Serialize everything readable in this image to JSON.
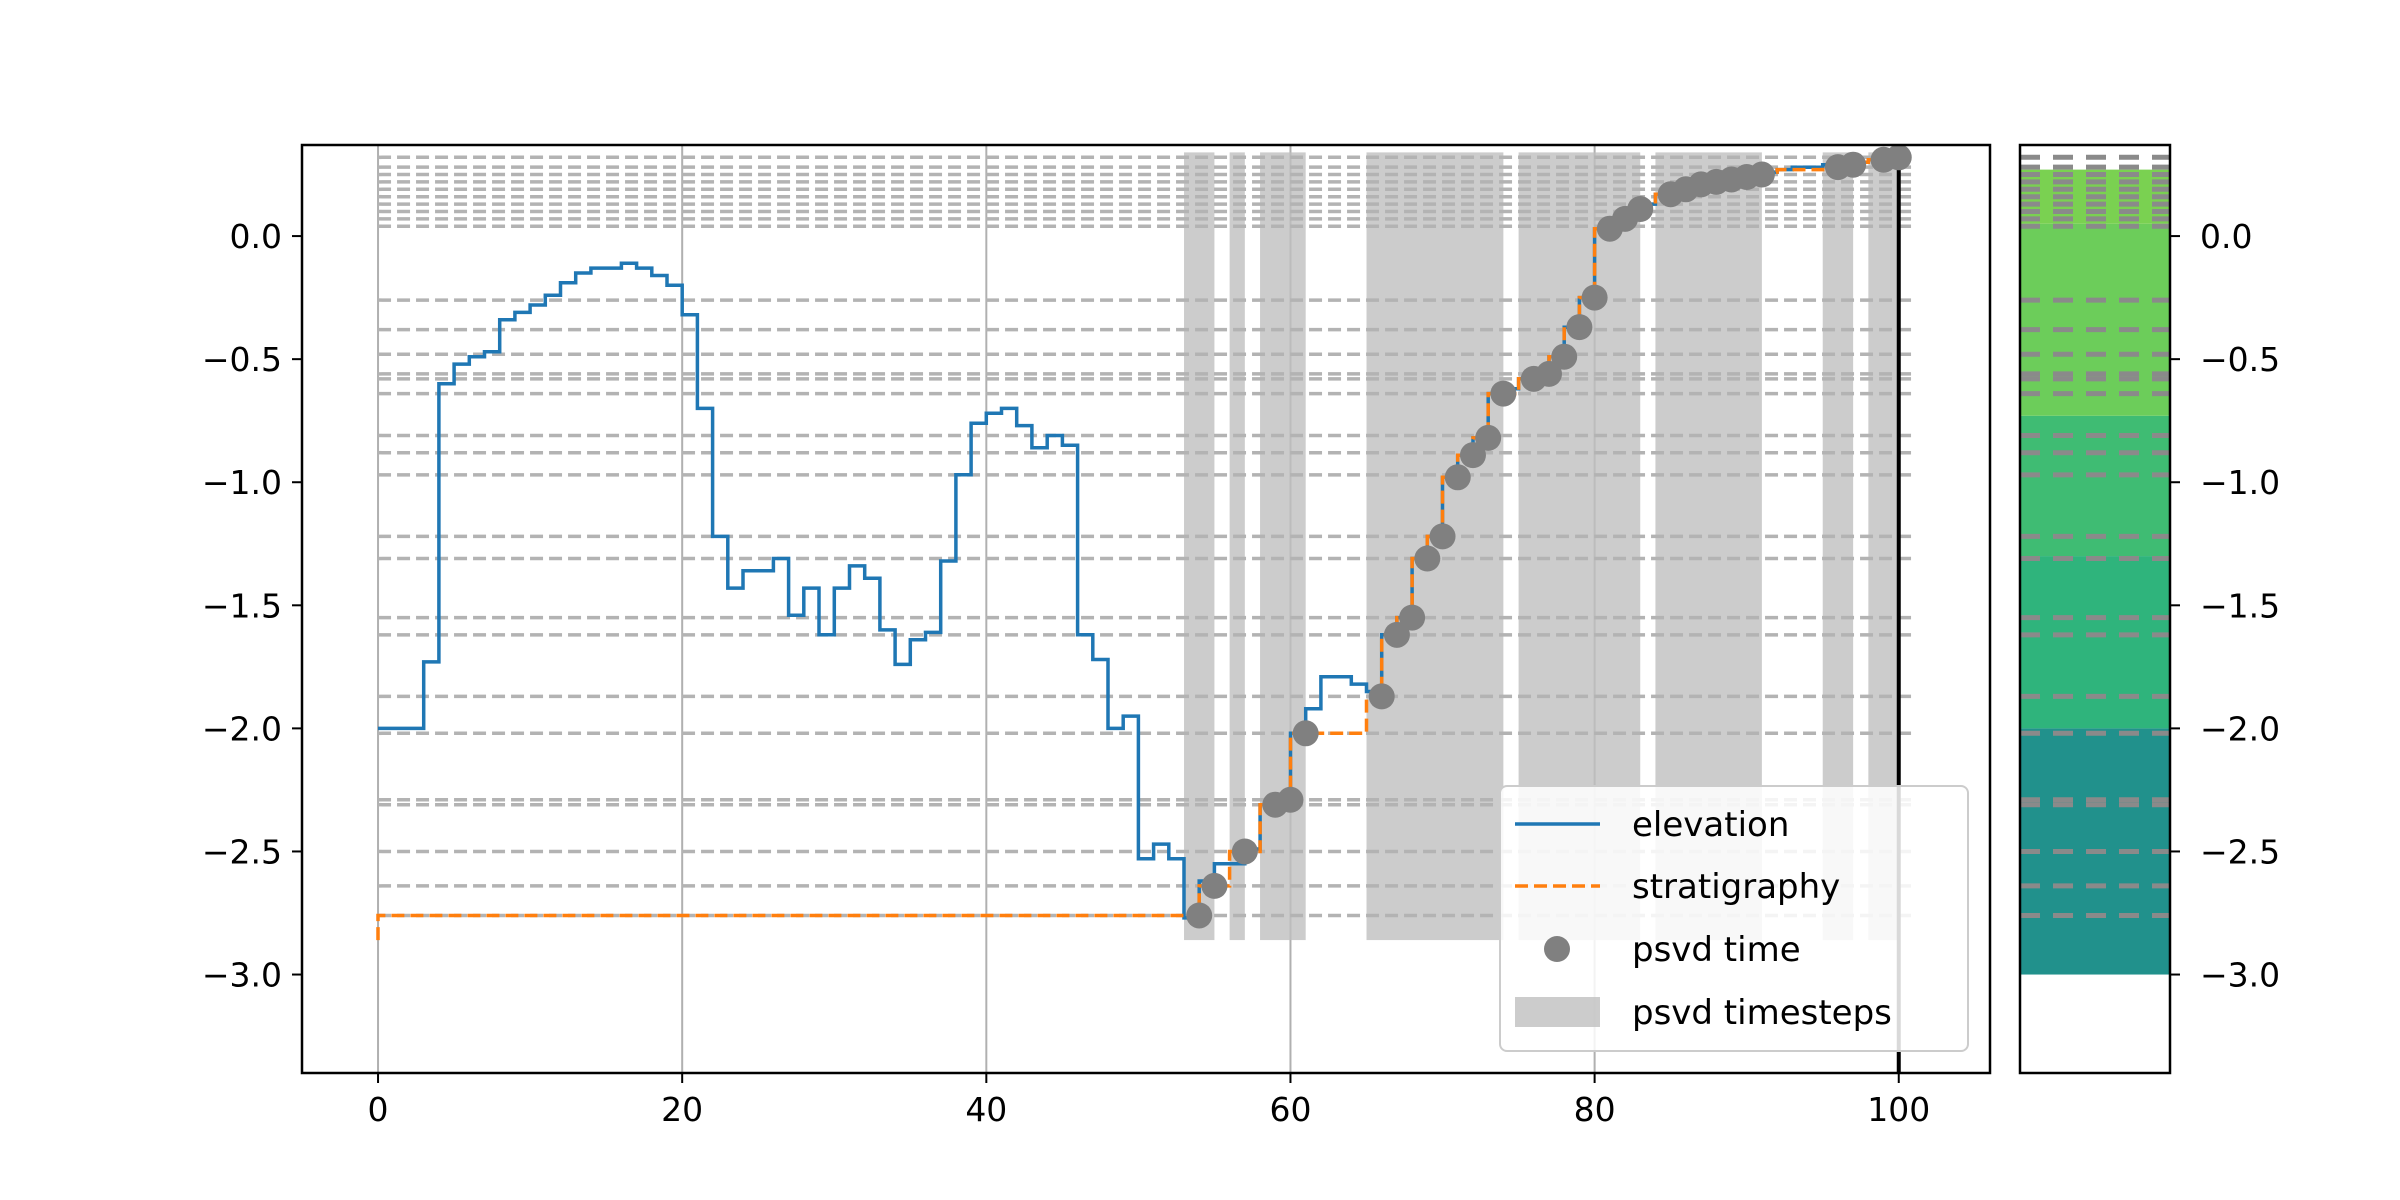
{
  "chart_data": {
    "type": "line",
    "xlim": [
      -5,
      106
    ],
    "ylim": [
      -3.4,
      0.37
    ],
    "x_ticks": [
      0,
      20,
      40,
      60,
      80,
      100
    ],
    "x_tick_labels": [
      "0",
      "20",
      "40",
      "60",
      "80",
      "100"
    ],
    "y_ticks": [
      0.0,
      -0.5,
      -1.0,
      -1.5,
      -2.0,
      -2.5,
      -3.0
    ],
    "y_tick_labels": [
      "0.0",
      "−0.5",
      "−1.0",
      "−1.5",
      "−2.0",
      "−2.5",
      "−3.0"
    ],
    "grid": "vertical",
    "legend_position": "lower-right",
    "legend": [
      "elevation",
      "stratigraphy",
      "psvd time",
      "psvd timesteps"
    ],
    "colors": {
      "elevation": "#1f77b4",
      "stratigraphy": "#ff7f0e",
      "psvd_time": "#808080",
      "psvd_timesteps": "#bfbfbf",
      "grid": "#b0b0b0",
      "strata_lines": "#b3b3b3",
      "final_time_line": "#000000"
    },
    "series": [
      {
        "name": "elevation",
        "style": "step",
        "x": [
          0,
          1,
          2,
          3,
          4,
          5,
          6,
          7,
          8,
          9,
          10,
          11,
          12,
          13,
          14,
          15,
          16,
          17,
          18,
          19,
          20,
          21,
          22,
          23,
          24,
          25,
          26,
          27,
          28,
          29,
          30,
          31,
          32,
          33,
          34,
          35,
          36,
          37,
          38,
          39,
          40,
          41,
          42,
          43,
          44,
          45,
          46,
          47,
          48,
          49,
          50,
          51,
          52,
          53,
          54,
          55,
          56,
          57,
          58,
          59,
          60,
          61,
          62,
          63,
          64,
          65,
          66,
          67,
          68,
          69,
          70,
          71,
          72,
          73,
          74,
          75,
          76,
          77,
          78,
          79,
          80,
          81,
          82,
          83,
          84,
          85,
          86,
          87,
          88,
          89,
          90,
          91,
          92,
          93,
          94,
          95,
          96,
          97,
          98,
          99,
          100
        ],
        "y": [
          -2.0,
          -2.0,
          -2.0,
          -2.0,
          -1.73,
          -0.6,
          -0.52,
          -0.49,
          -0.47,
          -0.34,
          -0.31,
          -0.28,
          -0.24,
          -0.19,
          -0.15,
          -0.13,
          -0.13,
          -0.11,
          -0.13,
          -0.16,
          -0.2,
          -0.32,
          -0.7,
          -1.22,
          -1.43,
          -1.36,
          -1.36,
          -1.31,
          -1.54,
          -1.43,
          -1.62,
          -1.43,
          -1.34,
          -1.39,
          -1.6,
          -1.74,
          -1.64,
          -1.61,
          -1.32,
          -0.97,
          -0.76,
          -0.72,
          -0.7,
          -0.77,
          -0.86,
          -0.81,
          -0.85,
          -1.62,
          -1.72,
          -2.0,
          -1.95,
          -2.53,
          -2.47,
          -2.53,
          -2.77,
          -2.62,
          -2.55,
          -2.55,
          -2.49,
          -2.31,
          -2.29,
          -2.02,
          -1.92,
          -1.79,
          -1.79,
          -1.82,
          -1.85,
          -1.62,
          -1.55,
          -1.31,
          -1.22,
          -0.98,
          -0.89,
          -0.82,
          -0.64,
          -0.62,
          -0.58,
          -0.56,
          -0.49,
          -0.37,
          -0.25,
          0.03,
          0.07,
          0.11,
          0.13,
          0.17,
          0.19,
          0.21,
          0.22,
          0.23,
          0.24,
          0.25,
          0.26,
          0.27,
          0.28,
          0.28,
          0.29,
          0.29,
          0.3,
          0.31,
          0.32
        ]
      },
      {
        "name": "stratigraphy",
        "style": "step-dashed",
        "x": [
          0,
          54,
          55,
          56,
          57,
          58,
          59,
          60,
          61,
          62,
          63,
          64,
          65,
          66,
          67,
          68,
          69,
          70,
          71,
          72,
          73,
          74,
          75,
          76,
          77,
          78,
          79,
          80,
          81,
          82,
          83,
          84,
          85,
          86,
          87,
          88,
          89,
          90,
          91,
          92,
          93,
          94,
          95,
          96,
          97,
          98,
          99,
          100
        ],
        "y": [
          -2.86,
          -2.76,
          -2.64,
          -2.64,
          -2.5,
          -2.5,
          -2.31,
          -2.29,
          -2.02,
          -2.02,
          -2.02,
          -2.02,
          -2.02,
          -1.87,
          -1.62,
          -1.55,
          -1.31,
          -1.22,
          -0.98,
          -0.89,
          -0.82,
          -0.64,
          -0.64,
          -0.58,
          -0.56,
          -0.49,
          -0.37,
          -0.25,
          0.03,
          0.07,
          0.11,
          0.13,
          0.17,
          0.19,
          0.21,
          0.22,
          0.23,
          0.24,
          0.25,
          0.26,
          0.27,
          0.27,
          0.27,
          0.28,
          0.29,
          0.3,
          0.31,
          0.32
        ]
      },
      {
        "name": "psvd time",
        "style": "scatter",
        "x": [
          54,
          55,
          57,
          59,
          60,
          61,
          66,
          67,
          68,
          69,
          70,
          71,
          72,
          73,
          74,
          76,
          77,
          78,
          79,
          80,
          81,
          82,
          83,
          85,
          86,
          87,
          88,
          89,
          90,
          91,
          96,
          97,
          99,
          100
        ],
        "y": [
          -2.76,
          -2.64,
          -2.5,
          -2.31,
          -2.29,
          -2.02,
          -1.87,
          -1.62,
          -1.55,
          -1.31,
          -1.22,
          -0.98,
          -0.89,
          -0.82,
          -0.64,
          -0.58,
          -0.56,
          -0.49,
          -0.37,
          -0.25,
          0.03,
          0.07,
          0.11,
          0.17,
          0.19,
          0.21,
          0.22,
          0.23,
          0.24,
          0.25,
          0.28,
          0.29,
          0.31,
          0.32
        ]
      }
    ],
    "psvd_timesteps": {
      "y_bottom": -2.86,
      "y_top": 0.34,
      "ranges": [
        [
          53,
          55
        ],
        [
          56,
          57
        ],
        [
          58,
          61
        ],
        [
          65,
          74
        ],
        [
          75,
          83
        ],
        [
          84,
          91
        ],
        [
          95,
          97
        ],
        [
          98,
          100
        ]
      ]
    },
    "final_time": 100,
    "strata_levels": {
      "x_range": [
        0,
        101
      ],
      "y": [
        0.32,
        0.28,
        0.25,
        0.22,
        0.19,
        0.16,
        0.13,
        0.1,
        0.07,
        0.04,
        -0.26,
        -0.38,
        -0.48,
        -0.56,
        -0.58,
        -0.64,
        -0.81,
        -0.88,
        -0.97,
        -1.22,
        -1.31,
        -1.55,
        -1.62,
        -1.87,
        -2.02,
        -2.29,
        -2.31,
        -2.5,
        -2.64,
        -2.76
      ]
    },
    "column_panel": {
      "ylim": [
        -3.4,
        0.37
      ],
      "bands": [
        {
          "y0": -3.0,
          "y1": -2.0,
          "color": "#21918c"
        },
        {
          "y0": -2.0,
          "y1": -1.3,
          "color": "#2fb47c"
        },
        {
          "y0": -1.3,
          "y1": -0.73,
          "color": "#3fbc73"
        },
        {
          "y0": -0.73,
          "y1": 0.05,
          "color": "#6ccd5a"
        },
        {
          "y0": 0.05,
          "y1": 0.27,
          "color": "#7ad151"
        }
      ],
      "line_color": "#8a8a8a"
    }
  }
}
